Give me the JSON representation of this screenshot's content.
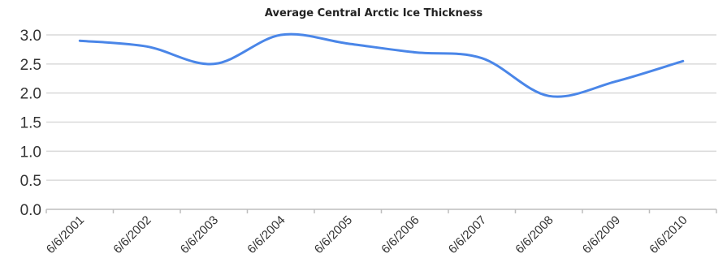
{
  "chart_data": {
    "type": "line",
    "title": "Average Central Arctic Ice Thickness",
    "xlabel": "",
    "ylabel": "",
    "categories": [
      "6/6/2001",
      "6/6/2002",
      "6/6/2003",
      "6/6/2004",
      "6/6/2005",
      "6/6/2006",
      "6/6/2007",
      "6/6/2008",
      "6/6/2009",
      "6/6/2010"
    ],
    "series": [
      {
        "values": [
          2.9,
          2.8,
          2.5,
          3.0,
          2.85,
          2.7,
          2.6,
          1.95,
          2.2,
          2.55
        ]
      }
    ],
    "ylim": [
      0,
      3
    ],
    "yticks": [
      "0.0",
      "0.5",
      "1.0",
      "1.5",
      "2.0",
      "2.5",
      "3.0"
    ],
    "grid": true,
    "legend": "none",
    "line_color": "#4a86e8",
    "smooth": true
  }
}
